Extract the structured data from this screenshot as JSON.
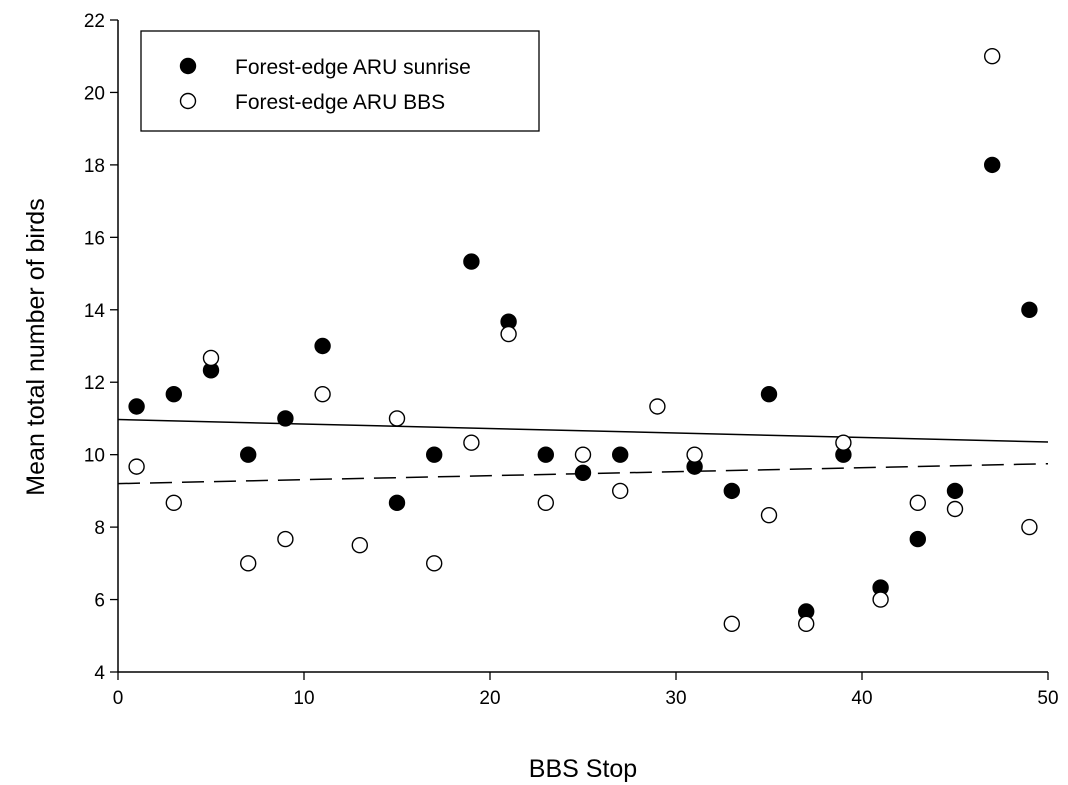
{
  "chart_data": {
    "type": "scatter",
    "title": "",
    "xlabel": "BBS Stop",
    "ylabel": "Mean total number of birds",
    "xlim": [
      0,
      50
    ],
    "ylim": [
      4,
      22
    ],
    "x_ticks": [
      "0",
      "10",
      "20",
      "30",
      "40",
      "50"
    ],
    "y_ticks": [
      "4",
      "6",
      "8",
      "10",
      "12",
      "14",
      "16",
      "18",
      "20",
      "22"
    ],
    "grid": false,
    "legend_position": "top-left",
    "series": [
      {
        "name": "Forest-edge ARU sunrise",
        "marker": "filled-circle",
        "color": "#000000",
        "x": [
          1,
          3,
          5,
          7,
          9,
          11,
          15,
          17,
          19,
          21,
          23,
          25,
          27,
          31,
          33,
          35,
          37,
          39,
          41,
          43,
          45,
          47,
          49
        ],
        "y": [
          11.33,
          11.67,
          12.33,
          10.0,
          11.0,
          13.0,
          8.67,
          10.0,
          15.33,
          13.67,
          10.0,
          9.5,
          10.0,
          9.67,
          9.0,
          11.67,
          5.67,
          10.0,
          6.33,
          7.67,
          9.0,
          18.0,
          14.0
        ],
        "trend": {
          "line_style": "solid",
          "y_at_xmin": 10.97,
          "y_at_xmax": 10.35
        }
      },
      {
        "name": "Forest-edge ARU BBS",
        "marker": "open-circle",
        "color": "#000000",
        "x": [
          1,
          3,
          5,
          7,
          9,
          11,
          13,
          15,
          17,
          19,
          21,
          23,
          25,
          27,
          29,
          31,
          33,
          35,
          37,
          39,
          41,
          43,
          45,
          47,
          49
        ],
        "y": [
          9.67,
          8.67,
          12.67,
          7.0,
          7.67,
          11.67,
          7.5,
          11.0,
          7.0,
          10.33,
          13.33,
          8.67,
          10.0,
          9.0,
          11.33,
          10.0,
          5.33,
          8.33,
          5.33,
          10.33,
          6.0,
          8.67,
          8.5,
          21.0,
          8.0
        ],
        "trend": {
          "line_style": "dashed",
          "y_at_xmin": 9.2,
          "y_at_xmax": 9.75
        }
      }
    ]
  }
}
